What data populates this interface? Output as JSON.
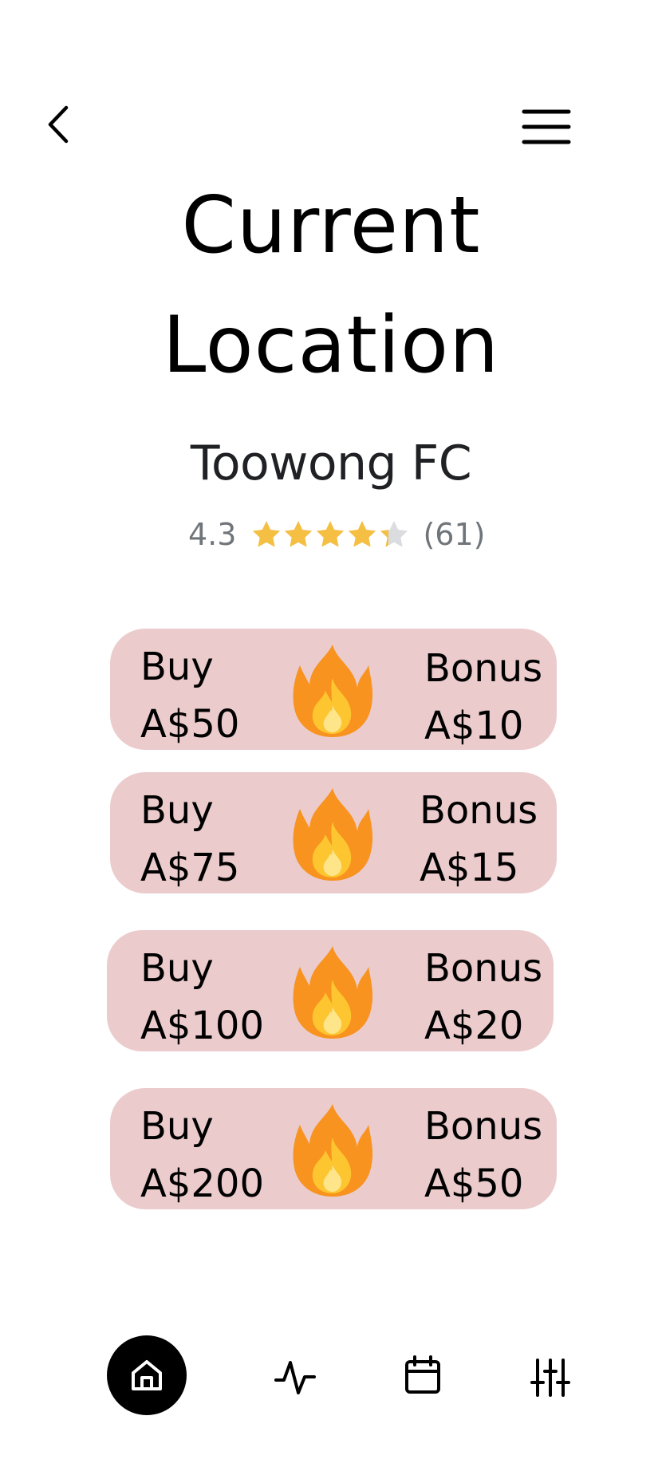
{
  "header": {
    "back_icon": "chevron-left-icon",
    "menu_icon": "hamburger-menu-icon"
  },
  "title": {
    "line1": "Current",
    "line2": "Location"
  },
  "venue": {
    "name": "Toowong FC",
    "rating": "4.3",
    "rating_value": 4.3,
    "rating_max": 5,
    "review_count": "(61)",
    "star_color": "#f4bf42",
    "star_empty_color": "#dadce0"
  },
  "offers": [
    {
      "buy_label": "Buy",
      "buy_amount": "A$50",
      "bonus_label": "Bonus",
      "bonus_amount": "A$10",
      "icon": "fire-icon"
    },
    {
      "buy_label": "Buy",
      "buy_amount": "A$75",
      "bonus_label": "Bonus",
      "bonus_amount": "A$15",
      "icon": "fire-icon"
    },
    {
      "buy_label": "Buy",
      "buy_amount": "A$100",
      "bonus_label": "Bonus",
      "bonus_amount": "A$20",
      "icon": "fire-icon"
    },
    {
      "buy_label": "Buy",
      "buy_amount": "A$200",
      "bonus_label": "Bonus",
      "bonus_amount": "A$50",
      "icon": "fire-icon"
    }
  ],
  "colors": {
    "card_background": "#ebcbcc",
    "nav_active_background": "#000000"
  },
  "nav": {
    "items": [
      {
        "icon": "home-icon",
        "active": true
      },
      {
        "icon": "activity-icon",
        "active": false
      },
      {
        "icon": "calendar-icon",
        "active": false
      },
      {
        "icon": "sliders-icon",
        "active": false
      }
    ]
  }
}
